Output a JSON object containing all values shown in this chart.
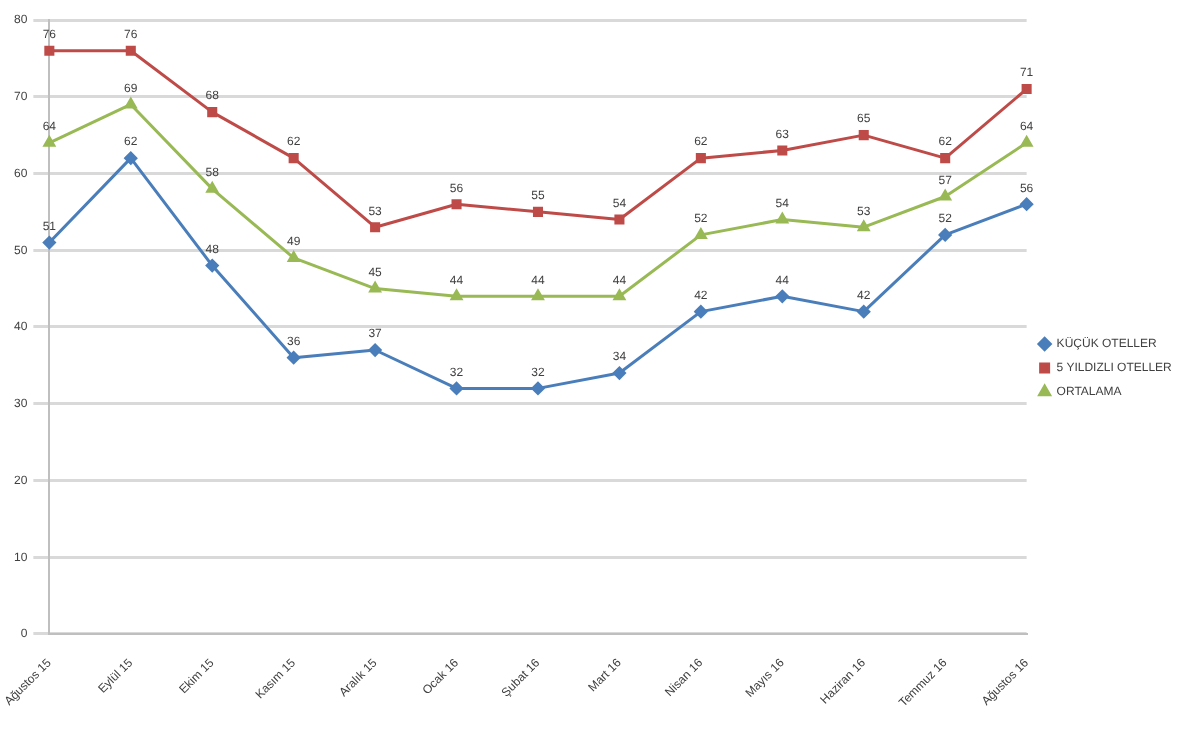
{
  "chart_data": {
    "type": "line",
    "categories": [
      "Ağustos 15",
      "Eylül 15",
      "Ekim 15",
      "Kasım 15",
      "Aralık 15",
      "Ocak 16",
      "Şubat 16",
      "Mart 16",
      "Nisan 16",
      "Mayıs 16",
      "Haziran 16",
      "Temmuz 16",
      "Ağustos 16"
    ],
    "series": [
      {
        "name": "KÜÇÜK OTELLER",
        "color": "#4a7ebb",
        "marker": "diamond",
        "values": [
          51,
          62,
          48,
          36,
          37,
          32,
          32,
          34,
          42,
          44,
          42,
          52,
          56
        ]
      },
      {
        "name": "5 YILDIZLI OTELLER",
        "color": "#be4b48",
        "marker": "square",
        "values": [
          76,
          76,
          68,
          62,
          53,
          56,
          55,
          54,
          62,
          63,
          65,
          62,
          71
        ]
      },
      {
        "name": "ORTALAMA",
        "color": "#98b954",
        "marker": "triangle",
        "values": [
          64,
          69,
          58,
          49,
          45,
          44,
          44,
          44,
          52,
          54,
          53,
          57,
          64
        ]
      }
    ],
    "ylim": [
      0,
      80
    ],
    "yticks": [
      0,
      10,
      20,
      30,
      40,
      50,
      60,
      70,
      80
    ],
    "grid": "y",
    "legend": "right",
    "data_labels": true,
    "line_style": "solid"
  }
}
